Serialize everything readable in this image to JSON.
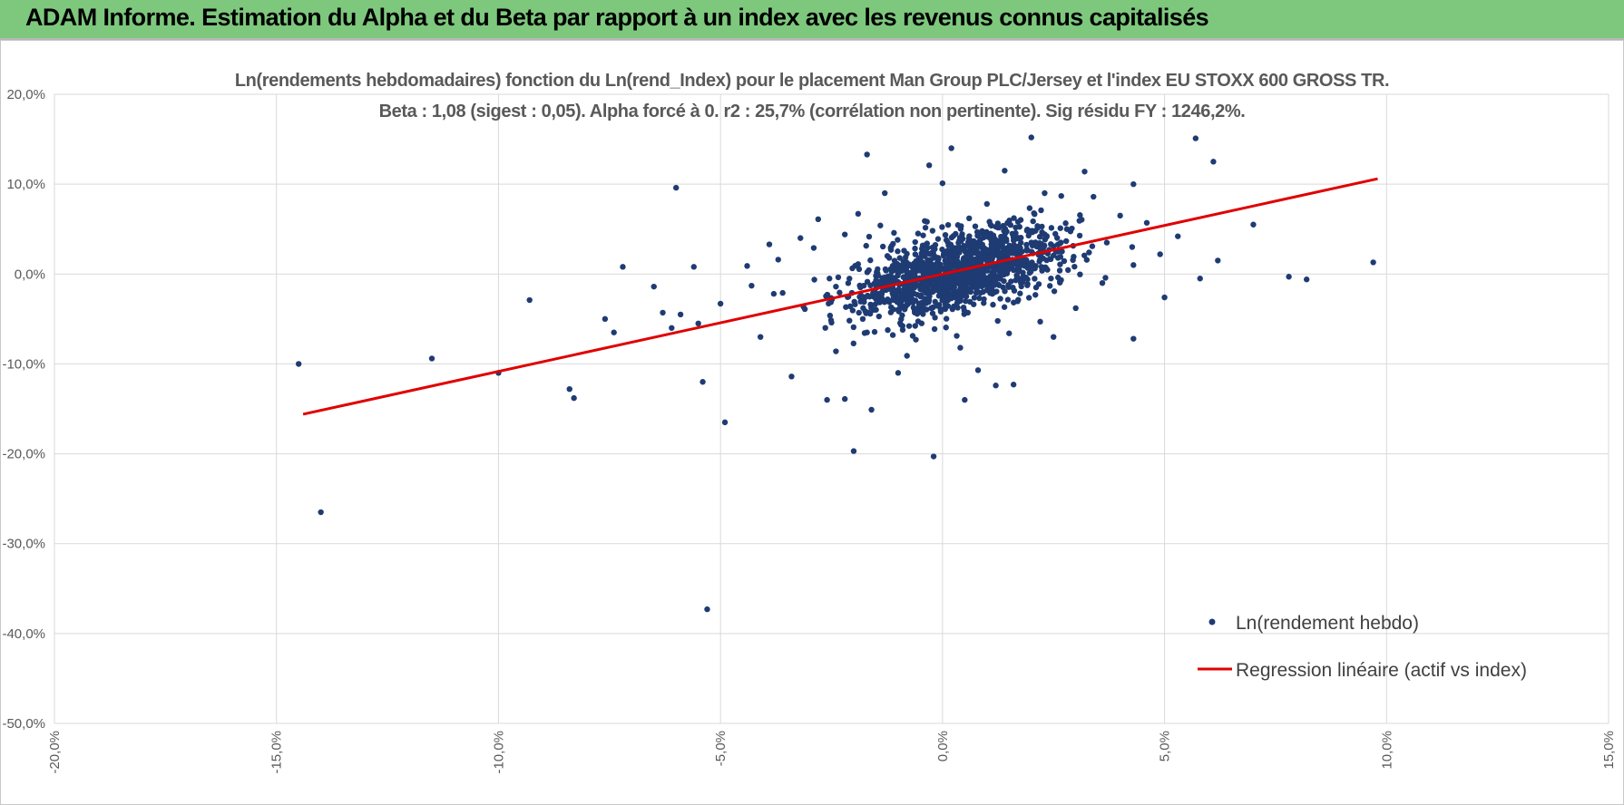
{
  "header": {
    "title": "ADAM Informe. Estimation du Alpha et du Beta par rapport à un index avec les revenus connus capitalisés",
    "color": "#7dc87d"
  },
  "chart_data": {
    "type": "scatter",
    "title": "Ln(rendements hebdomadaires) fonction du Ln(rend_Index) pour le placement Man Group PLC/Jersey et l'index EU STOXX 600 GROSS TR.",
    "subtitle": "Beta : 1,08 (sigest : 0,05).  Alpha forcé à 0. r2 : 25,7% (corrélation non pertinente). Sig résidu FY : 1246,2%.",
    "xlabel": "",
    "ylabel": "",
    "xlim": [
      -20,
      15
    ],
    "ylim": [
      -50,
      20
    ],
    "x_ticks": [
      "-20,0%",
      "-15,0%",
      "-10,0%",
      "-5,0%",
      "0,0%",
      "5,0%",
      "10,0%",
      "15,0%"
    ],
    "y_ticks": [
      "20,0%",
      "10,0%",
      "0,0%",
      "-10,0%",
      "-20,0%",
      "-30,0%",
      "-40,0%",
      "-50,0%"
    ],
    "grid": true,
    "legend_position": "bottom-right",
    "series": [
      {
        "name": "Ln(rendement hebdo)",
        "kind": "scatter",
        "color": "#1f3b73",
        "points": [
          [
            -14.5,
            -10.0
          ],
          [
            -14.0,
            -26.5
          ],
          [
            -11.5,
            -9.4
          ],
          [
            -10.0,
            -11.0
          ],
          [
            -9.3,
            -2.9
          ],
          [
            -8.4,
            -12.8
          ],
          [
            -8.3,
            -13.8
          ],
          [
            -7.6,
            -5.0
          ],
          [
            -7.4,
            -6.5
          ],
          [
            -7.2,
            0.8
          ],
          [
            -6.5,
            -1.4
          ],
          [
            -6.3,
            -4.3
          ],
          [
            -6.1,
            -6.0
          ],
          [
            -6.0,
            9.6
          ],
          [
            -5.9,
            -4.5
          ],
          [
            -5.6,
            0.8
          ],
          [
            -5.5,
            -5.5
          ],
          [
            -5.4,
            -12.0
          ],
          [
            -5.3,
            -37.3
          ],
          [
            -5.0,
            -3.3
          ],
          [
            -4.9,
            -16.5
          ],
          [
            -4.4,
            0.9
          ],
          [
            -4.1,
            -7.0
          ],
          [
            -3.9,
            3.3
          ],
          [
            -3.6,
            -2.1
          ],
          [
            -3.4,
            -11.4
          ],
          [
            -3.2,
            4.0
          ],
          [
            -2.6,
            -14.0
          ],
          [
            -2.4,
            -8.6
          ],
          [
            -2.2,
            -13.9
          ],
          [
            -2.0,
            -19.7
          ],
          [
            -1.7,
            13.3
          ],
          [
            -1.6,
            -15.1
          ],
          [
            -1.2,
            1.8
          ],
          [
            -1.0,
            -11.0
          ],
          [
            -0.8,
            -9.1
          ],
          [
            -0.3,
            12.1
          ],
          [
            -0.2,
            -20.3
          ],
          [
            0.2,
            14.0
          ],
          [
            0.5,
            -14.0
          ],
          [
            0.8,
            -10.7
          ],
          [
            1.2,
            -12.4
          ],
          [
            1.4,
            11.5
          ],
          [
            1.6,
            -12.3
          ],
          [
            2.0,
            15.2
          ],
          [
            2.5,
            -7.0
          ],
          [
            3.2,
            11.4
          ],
          [
            4.3,
            -7.2
          ],
          [
            4.3,
            10.0
          ],
          [
            5.0,
            -2.6
          ],
          [
            5.7,
            15.1
          ],
          [
            5.8,
            -0.5
          ],
          [
            6.1,
            12.5
          ],
          [
            6.2,
            1.5
          ],
          [
            7.0,
            5.5
          ],
          [
            7.8,
            -0.3
          ],
          [
            8.2,
            -0.6
          ],
          [
            9.7,
            1.3
          ],
          [
            -2.8,
            6.1
          ],
          [
            -1.9,
            6.7
          ],
          [
            -1.3,
            9.0
          ],
          [
            0.0,
            10.1
          ],
          [
            1.0,
            7.8
          ],
          [
            2.3,
            9.0
          ],
          [
            3.4,
            8.6
          ],
          [
            4.0,
            6.5
          ],
          [
            4.6,
            5.7
          ],
          [
            5.3,
            4.2
          ],
          [
            4.9,
            2.2
          ],
          [
            4.3,
            1.0
          ],
          [
            3.6,
            -1.0
          ],
          [
            3.0,
            -3.8
          ],
          [
            2.2,
            -5.3
          ],
          [
            1.5,
            -6.6
          ],
          [
            0.4,
            -8.2
          ],
          [
            -0.6,
            -7.3
          ],
          [
            -1.7,
            -6.5
          ],
          [
            -2.5,
            -5.4
          ],
          [
            -3.1,
            -3.9
          ],
          [
            -3.8,
            -2.2
          ],
          [
            -4.3,
            -1.3
          ],
          [
            -3.7,
            1.6
          ],
          [
            -2.9,
            2.9
          ],
          [
            -2.2,
            4.4
          ],
          [
            -1.4,
            5.4
          ],
          [
            -0.4,
            5.9
          ],
          [
            0.6,
            6.2
          ],
          [
            1.7,
            5.8
          ],
          [
            2.8,
            5.0
          ],
          [
            3.7,
            3.5
          ],
          [
            -0.5,
            1.7
          ],
          [
            0.3,
            2.9
          ],
          [
            1.1,
            3.3
          ],
          [
            1.9,
            2.6
          ],
          [
            2.6,
            1.8
          ],
          [
            -1.1,
            -0.7
          ],
          [
            -0.2,
            -1.9
          ],
          [
            0.7,
            -0.4
          ],
          [
            1.3,
            0.6
          ],
          [
            2.1,
            0.9
          ],
          [
            -1.8,
            -2.7
          ],
          [
            -0.9,
            -3.6
          ],
          [
            0.2,
            -2.7
          ],
          [
            1.0,
            -1.8
          ],
          [
            1.8,
            -0.9
          ],
          [
            -2.4,
            -1.4
          ],
          [
            -1.5,
            -0.2
          ],
          [
            -0.6,
            0.3
          ],
          [
            0.5,
            1.0
          ],
          [
            1.4,
            1.6
          ],
          [
            2.5,
            3.1
          ],
          [
            3.3,
            2.4
          ],
          [
            -0.1,
            3.9
          ],
          [
            0.9,
            4.5
          ],
          [
            -1.9,
            1.1
          ]
        ]
      },
      {
        "name": "Regression linéaire (actif vs index)",
        "kind": "line",
        "color": "#e00000",
        "x": [
          -14.4,
          9.8
        ],
        "y": [
          -15.6,
          10.6
        ]
      }
    ]
  }
}
